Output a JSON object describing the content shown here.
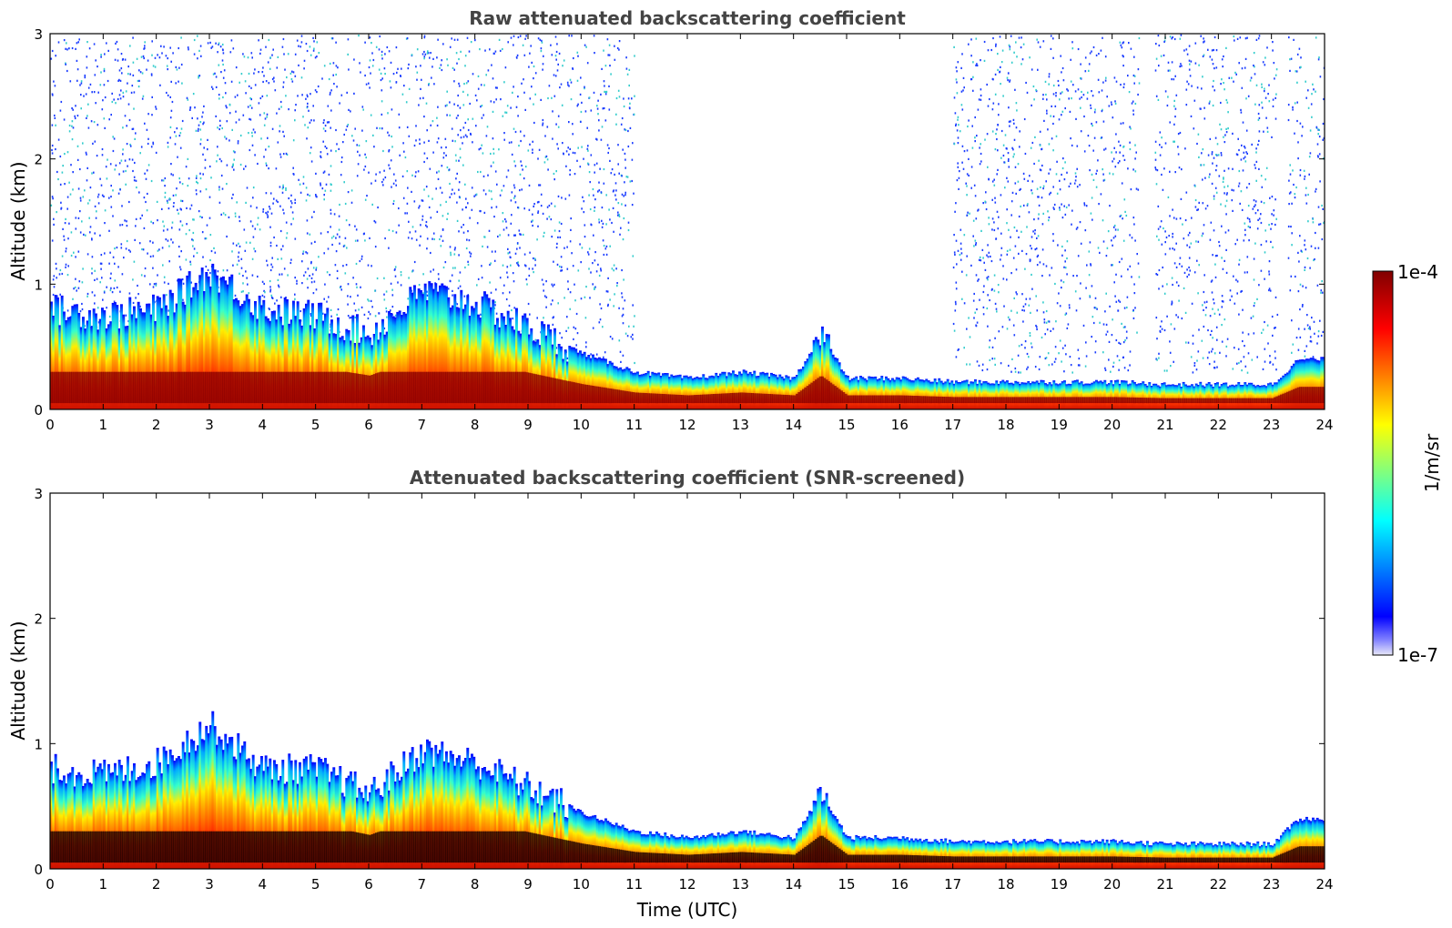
{
  "chart_data": [
    {
      "type": "heatmap",
      "title": "Raw attenuated backscattering coefficient",
      "xlabel": "",
      "ylabel": "Altitude (km)",
      "xlim": [
        0,
        24
      ],
      "ylim": [
        0,
        3
      ],
      "xticks": [
        "0",
        "1",
        "2",
        "3",
        "4",
        "5",
        "6",
        "7",
        "8",
        "9",
        "10",
        "11",
        "12",
        "13",
        "14",
        "15",
        "16",
        "17",
        "18",
        "19",
        "20",
        "21",
        "22",
        "23",
        "24"
      ],
      "yticks": [
        "0",
        "1",
        "2",
        "3"
      ],
      "aerosol_layer_top_km": {
        "x": [
          0,
          1,
          2,
          3,
          4,
          5,
          6,
          7,
          8,
          9,
          10,
          11,
          12,
          13,
          14,
          14.5,
          15,
          16,
          17,
          18,
          19,
          20,
          21,
          22,
          23,
          23.5,
          24
        ],
        "y": [
          0.8,
          0.75,
          0.8,
          1.1,
          0.8,
          0.75,
          0.6,
          0.95,
          0.85,
          0.65,
          0.45,
          0.3,
          0.25,
          0.3,
          0.25,
          0.6,
          0.25,
          0.25,
          0.22,
          0.22,
          0.22,
          0.22,
          0.2,
          0.2,
          0.2,
          0.4,
          0.4
        ]
      },
      "noise_regions_hours": [
        [
          0,
          11
        ],
        [
          17,
          20.5
        ],
        [
          20.8,
          23.1
        ],
        [
          23.3,
          24
        ]
      ]
    },
    {
      "type": "heatmap",
      "title": "Attenuated backscattering coefficient (SNR-screened)",
      "xlabel": "Time (UTC)",
      "ylabel": "Altitude (km)",
      "xlim": [
        0,
        24
      ],
      "ylim": [
        0,
        3
      ],
      "xticks": [
        "0",
        "1",
        "2",
        "3",
        "4",
        "5",
        "6",
        "7",
        "8",
        "9",
        "10",
        "11",
        "12",
        "13",
        "14",
        "15",
        "16",
        "17",
        "18",
        "19",
        "20",
        "21",
        "22",
        "23",
        "24"
      ],
      "yticks": [
        "0",
        "1",
        "2",
        "3"
      ],
      "aerosol_layer_top_km": {
        "x": [
          0,
          1,
          2,
          3,
          4,
          5,
          6,
          7,
          8,
          9,
          10,
          11,
          12,
          13,
          14,
          14.5,
          15,
          16,
          17,
          18,
          19,
          20,
          21,
          22,
          23,
          23.5,
          24
        ],
        "y": [
          0.8,
          0.75,
          0.85,
          1.15,
          0.8,
          0.8,
          0.6,
          0.95,
          0.85,
          0.65,
          0.45,
          0.3,
          0.25,
          0.3,
          0.25,
          0.6,
          0.25,
          0.25,
          0.22,
          0.22,
          0.22,
          0.22,
          0.2,
          0.2,
          0.2,
          0.4,
          0.4
        ]
      }
    }
  ],
  "colorbar": {
    "label": "1/m/sr",
    "max_label": "1e-4",
    "min_label": "1e-7",
    "colormap": "jet",
    "colors": [
      "#e8e8f8",
      "#0000ff",
      "#00ffff",
      "#ffff00",
      "#ff0000",
      "#800000"
    ]
  }
}
